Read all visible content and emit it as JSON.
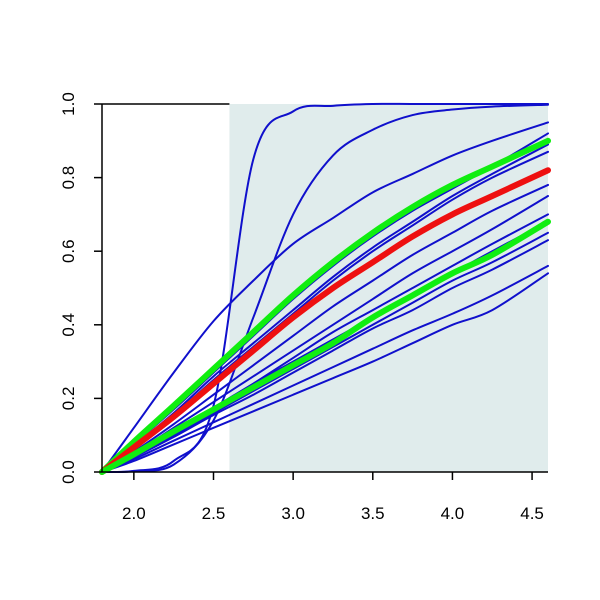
{
  "chart_data": {
    "type": "line",
    "title": "",
    "xlabel": "",
    "ylabel": "",
    "xlim": [
      1.8,
      4.6
    ],
    "ylim": [
      0.0,
      1.0
    ],
    "x_ticks": [
      2.0,
      2.5,
      3.0,
      3.5,
      4.0,
      4.5
    ],
    "x_tick_labels": [
      "2.0",
      "2.5",
      "3.0",
      "3.5",
      "4.0",
      "4.5"
    ],
    "y_ticks": [
      0.0,
      0.2,
      0.4,
      0.6,
      0.8,
      1.0
    ],
    "y_tick_labels": [
      "0.0",
      "0.2",
      "0.4",
      "0.6",
      "0.8",
      "1.0"
    ],
    "grid": false,
    "legend": "none",
    "shaded_region": {
      "x_from": 2.6,
      "x_to": 4.6,
      "color": "#e0ecec"
    },
    "colors": {
      "blue": "#1010cc",
      "green": "#10ee10",
      "red": "#ee1010",
      "axis": "#000000"
    },
    "x_common": [
      1.8,
      2.0,
      2.25,
      2.5,
      2.75,
      3.0,
      3.25,
      3.5,
      3.75,
      4.0,
      4.25,
      4.6
    ],
    "series": [
      {
        "color": "blue",
        "width": 2,
        "y": [
          0,
          0.003,
          0.03,
          0.18,
          0.85,
          0.98,
          0.995,
          1.0,
          1.0,
          1.0,
          1.0,
          1.0
        ]
      },
      {
        "color": "blue",
        "width": 2,
        "y": [
          0,
          0.002,
          0.02,
          0.14,
          0.42,
          0.7,
          0.86,
          0.93,
          0.97,
          0.985,
          0.993,
          0.998
        ]
      },
      {
        "color": "blue",
        "width": 2,
        "y": [
          0,
          0.12,
          0.27,
          0.41,
          0.52,
          0.62,
          0.69,
          0.76,
          0.81,
          0.86,
          0.9,
          0.95
        ]
      },
      {
        "color": "blue",
        "width": 2,
        "y": [
          0,
          0.075,
          0.17,
          0.27,
          0.37,
          0.47,
          0.56,
          0.64,
          0.71,
          0.77,
          0.83,
          0.92
        ]
      },
      {
        "color": "blue",
        "width": 2,
        "y": [
          0,
          0.07,
          0.16,
          0.26,
          0.35,
          0.44,
          0.53,
          0.61,
          0.68,
          0.75,
          0.81,
          0.89
        ]
      },
      {
        "color": "blue",
        "width": 2,
        "y": [
          0,
          0.07,
          0.155,
          0.25,
          0.34,
          0.43,
          0.52,
          0.6,
          0.67,
          0.74,
          0.8,
          0.87
        ]
      },
      {
        "color": "blue",
        "width": 2,
        "y": [
          0,
          0.055,
          0.13,
          0.21,
          0.29,
          0.37,
          0.45,
          0.52,
          0.59,
          0.65,
          0.71,
          0.78
        ]
      },
      {
        "color": "blue",
        "width": 2,
        "y": [
          0,
          0.05,
          0.12,
          0.19,
          0.26,
          0.33,
          0.4,
          0.47,
          0.54,
          0.6,
          0.66,
          0.75
        ]
      },
      {
        "color": "blue",
        "width": 2,
        "y": [
          0,
          0.045,
          0.11,
          0.17,
          0.24,
          0.31,
          0.38,
          0.44,
          0.5,
          0.56,
          0.62,
          0.7
        ]
      },
      {
        "color": "blue",
        "width": 2,
        "y": [
          0,
          0.05,
          0.115,
          0.175,
          0.24,
          0.3,
          0.36,
          0.42,
          0.48,
          0.54,
          0.6,
          0.68
        ]
      },
      {
        "color": "blue",
        "width": 2,
        "y": [
          0,
          0.045,
          0.1,
          0.16,
          0.22,
          0.28,
          0.34,
          0.4,
          0.46,
          0.52,
          0.57,
          0.65
        ]
      },
      {
        "color": "blue",
        "width": 2,
        "y": [
          0,
          0.04,
          0.095,
          0.155,
          0.21,
          0.27,
          0.33,
          0.39,
          0.44,
          0.5,
          0.55,
          0.63
        ]
      },
      {
        "color": "blue",
        "width": 2,
        "y": [
          0,
          0.035,
          0.085,
          0.135,
          0.185,
          0.235,
          0.285,
          0.335,
          0.385,
          0.43,
          0.48,
          0.56
        ]
      },
      {
        "color": "blue",
        "width": 2,
        "y": [
          0,
          0.03,
          0.075,
          0.12,
          0.165,
          0.21,
          0.255,
          0.3,
          0.35,
          0.4,
          0.44,
          0.54
        ]
      },
      {
        "color": "green",
        "width": 6,
        "y": [
          0,
          0.082,
          0.18,
          0.28,
          0.38,
          0.48,
          0.57,
          0.65,
          0.72,
          0.78,
          0.83,
          0.9
        ]
      },
      {
        "color": "red",
        "width": 6,
        "y": [
          0,
          0.067,
          0.15,
          0.24,
          0.33,
          0.42,
          0.5,
          0.57,
          0.64,
          0.7,
          0.75,
          0.82
        ]
      },
      {
        "color": "green",
        "width": 6,
        "y": [
          0,
          0.048,
          0.11,
          0.17,
          0.23,
          0.29,
          0.35,
          0.42,
          0.48,
          0.54,
          0.59,
          0.68
        ]
      }
    ]
  }
}
